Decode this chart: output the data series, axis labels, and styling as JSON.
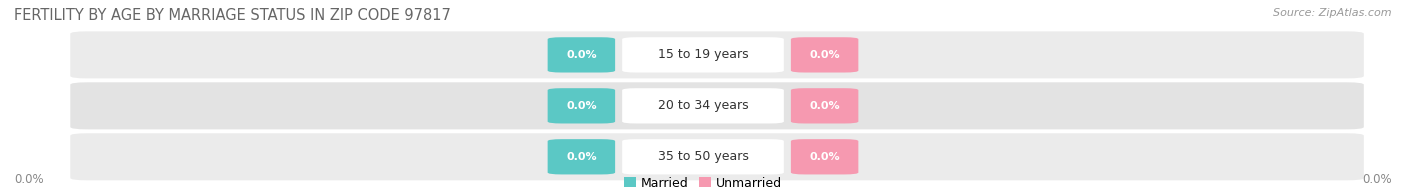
{
  "title": "FERTILITY BY AGE BY MARRIAGE STATUS IN ZIP CODE 97817",
  "source": "Source: ZipAtlas.com",
  "age_groups": [
    "15 to 19 years",
    "20 to 34 years",
    "35 to 50 years"
  ],
  "married_values": [
    "0.0%",
    "0.0%",
    "0.0%"
  ],
  "unmarried_values": [
    "0.0%",
    "0.0%",
    "0.0%"
  ],
  "married_color": "#5BC8C5",
  "unmarried_color": "#F699B0",
  "row_bg_color_odd": "#EBEBEB",
  "row_bg_color_even": "#E3E3E3",
  "center_label_bg": "#FFFFFF",
  "left_label": "0.0%",
  "right_label": "0.0%",
  "legend_married": "Married",
  "legend_unmarried": "Unmarried",
  "title_fontsize": 10.5,
  "source_fontsize": 8,
  "value_fontsize": 8,
  "age_fontsize": 9,
  "tick_fontsize": 8.5,
  "legend_fontsize": 9
}
